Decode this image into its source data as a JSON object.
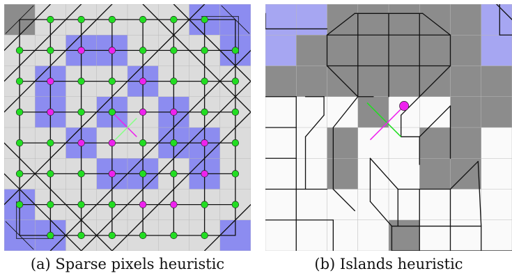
{
  "captions": {
    "a": "(a) Sparse pixels heuristic",
    "b": "(b) Islands heuristic"
  },
  "colors": {
    "light_pixel": "#dcdcdc",
    "dark_pixel": "#8c8c8c",
    "blue_pixel": "#8c8cf0",
    "light_blue_pixel": "#a6a6f2",
    "white_pixel": "#fafafa",
    "grid_line": "#b9b9b9",
    "edge": "#111111",
    "green_node": "#22dd22",
    "magenta_node": "#ee22ee"
  },
  "icons": [
    "green-node-dot",
    "magenta-node-dot"
  ]
}
